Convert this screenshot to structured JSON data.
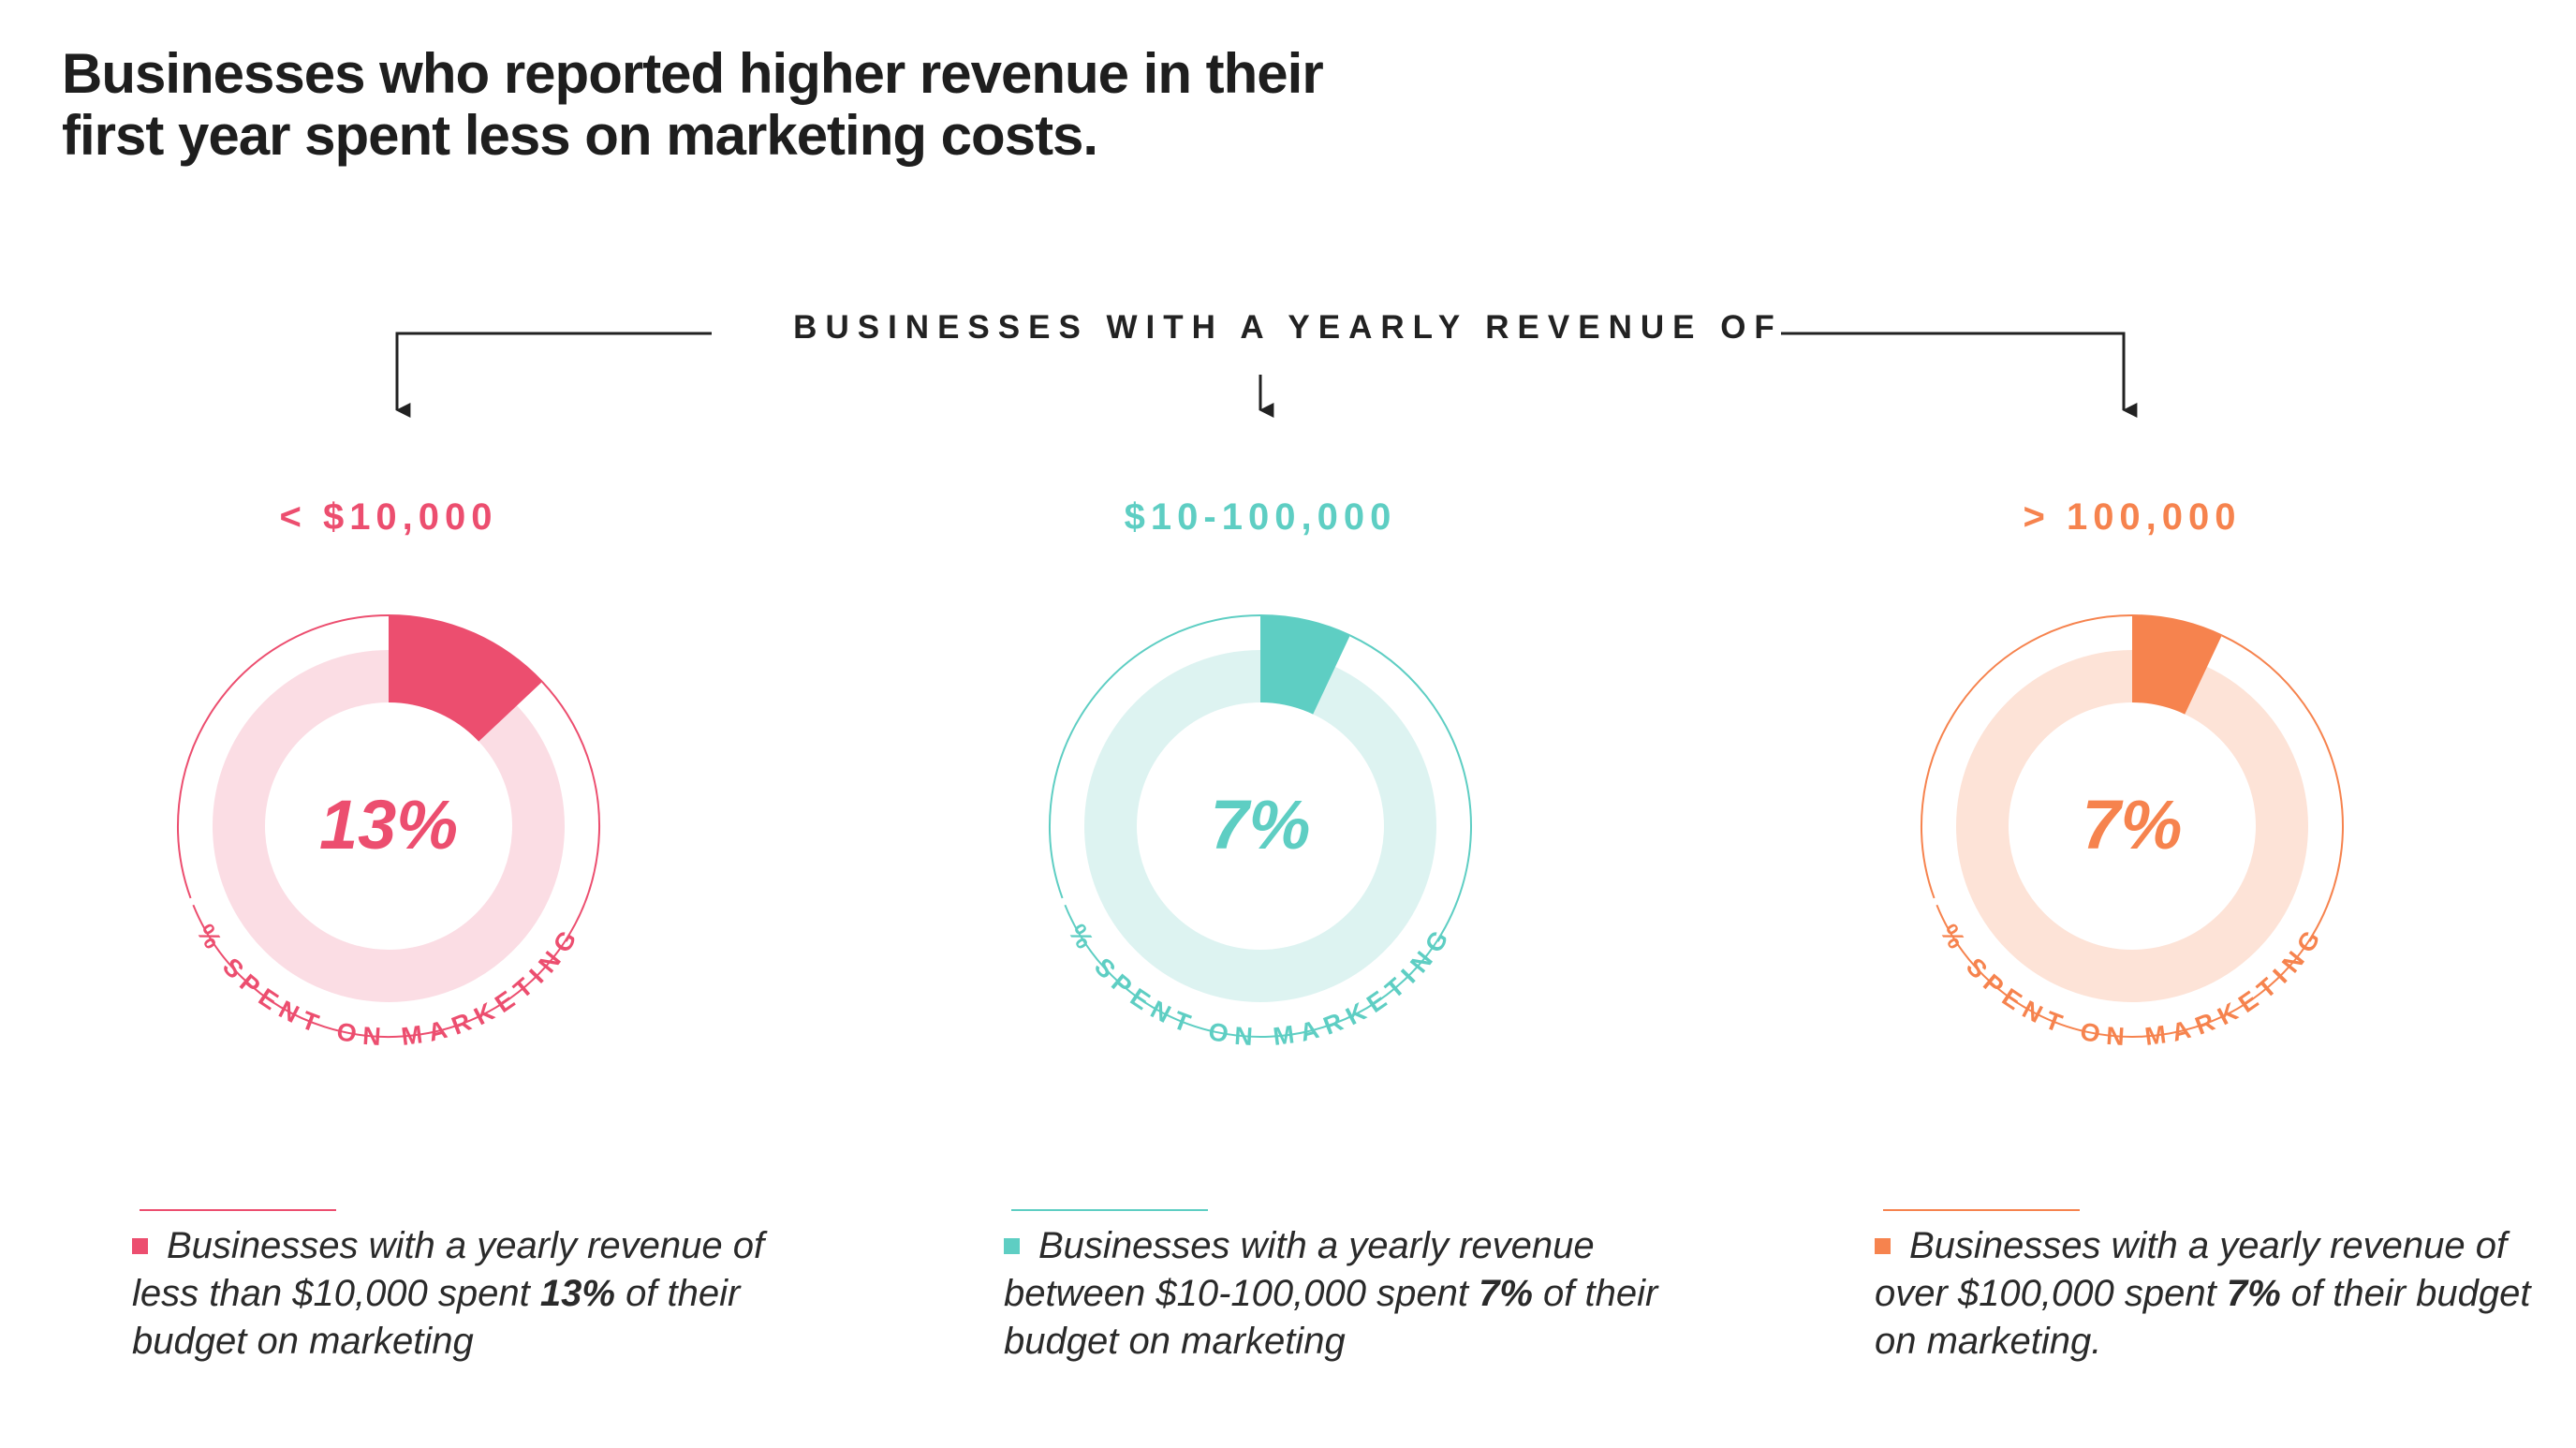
{
  "title_lines": [
    "Businesses who reported higher revenue in their",
    "first year spent less on marketing costs."
  ],
  "subtitle": "BUSINESSES WITH A YEARLY REVENUE OF",
  "chart_data": {
    "type": "pie",
    "title": "Businesses who reported higher revenue in their first year spent less on marketing costs.",
    "subtitle": "BUSINESSES WITH A YEARLY REVENUE OF",
    "value_label": "% SPENT ON MARKETING",
    "categories": [
      "< $10,000",
      "$10-100,000",
      "> 100,000"
    ],
    "values": [
      13,
      7,
      7
    ],
    "unit": "%",
    "series": [
      {
        "name": "< $10,000",
        "value": 13,
        "value_text": "13%",
        "color": "#ec4e6f",
        "light": "#fbdde4",
        "caption": {
          "pre": "Businesses with a yearly revenue of less than $10,000 spent ",
          "bold": "13%",
          "post": " of their budget on marketing"
        }
      },
      {
        "name": "$10-100,000",
        "value": 7,
        "value_text": "7%",
        "color": "#5ecec3",
        "light": "#ddf3f1",
        "caption": {
          "pre": "Businesses with a yearly revenue between $10-100,000 spent ",
          "bold": "7%",
          "post": " of their budget on marketing"
        }
      },
      {
        "name": "> 100,000",
        "value": 7,
        "value_text": "7%",
        "color": "#f6834e",
        "light": "#fde3d7",
        "caption": {
          "pre": "Businesses with a yearly revenue of over $100,000 spent ",
          "bold": "7%",
          "post": " of their budget on marketing."
        }
      }
    ]
  }
}
